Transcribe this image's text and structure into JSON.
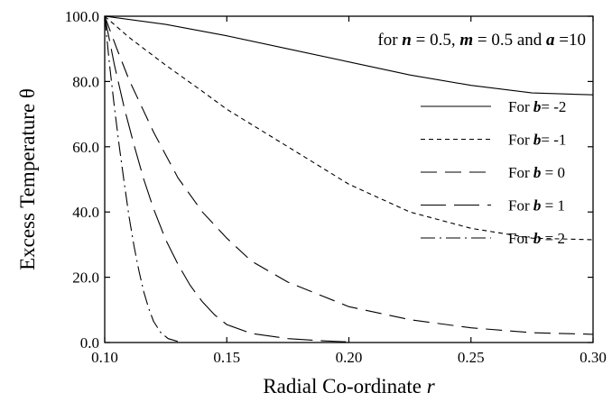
{
  "chart_data": {
    "type": "line",
    "xlabel_text": "Radial Co-ordinate",
    "xlabel_var": "r",
    "ylabel": "Excess Temperature θ",
    "xlim": [
      0.1,
      0.3
    ],
    "ylim": [
      0.0,
      100.0
    ],
    "xticks": [
      0.1,
      0.15,
      0.2,
      0.25,
      0.3
    ],
    "xtick_labels": [
      "0.10",
      "0.15",
      "0.20",
      "0.25",
      "0.30"
    ],
    "yticks": [
      0,
      20,
      40,
      60,
      80,
      100
    ],
    "ytick_labels": [
      "0.0",
      "20.0",
      "40.0",
      "60.0",
      "80.0",
      "100.0"
    ],
    "grid": false,
    "legend_position": "right",
    "annotation": {
      "prefix": "for ",
      "n_sym": "n",
      "n_val": " = 0.5, ",
      "m_sym": "m",
      "m_val": " = 0.5 and ",
      "a_sym": "a",
      "a_val": " =10"
    },
    "series": [
      {
        "name": "For b= -2",
        "legend_prefix": "For ",
        "legend_sym": "b",
        "legend_suffix": "= -2",
        "dash": "",
        "x": [
          0.1,
          0.125,
          0.15,
          0.175,
          0.2,
          0.225,
          0.25,
          0.275,
          0.3
        ],
        "y": [
          100.0,
          97.5,
          94.0,
          90.0,
          86.0,
          82.0,
          78.8,
          76.5,
          75.9
        ]
      },
      {
        "name": "For b= -1",
        "legend_prefix": "For ",
        "legend_sym": "b",
        "legend_suffix": "= -1",
        "dash": "5,4",
        "x": [
          0.1,
          0.11,
          0.125,
          0.14,
          0.15,
          0.175,
          0.2,
          0.225,
          0.25,
          0.275,
          0.3
        ],
        "y": [
          100.0,
          93.5,
          85.0,
          77.0,
          71.5,
          60.0,
          48.5,
          40.0,
          35.0,
          32.0,
          31.5
        ]
      },
      {
        "name": "For b = 0",
        "legend_prefix": "For ",
        "legend_sym": "b",
        "legend_suffix": " = 0",
        "dash": "18,9",
        "x": [
          0.1,
          0.105,
          0.11,
          0.12,
          0.13,
          0.14,
          0.15,
          0.16,
          0.175,
          0.2,
          0.225,
          0.25,
          0.275,
          0.3
        ],
        "y": [
          100.0,
          90.0,
          80.5,
          64.5,
          50.5,
          40.0,
          32.0,
          25.0,
          18.5,
          11.0,
          7.0,
          4.5,
          3.0,
          2.5
        ]
      },
      {
        "name": "For b = 1",
        "legend_prefix": "For ",
        "legend_sym": "b",
        "legend_suffix": " = 1",
        "dash": "28,9",
        "x": [
          0.1,
          0.104,
          0.108,
          0.112,
          0.116,
          0.12,
          0.125,
          0.13,
          0.135,
          0.14,
          0.145,
          0.15,
          0.16,
          0.175,
          0.19,
          0.2
        ],
        "y": [
          100.0,
          85.0,
          72.0,
          60.5,
          50.0,
          41.0,
          31.5,
          24.0,
          17.5,
          12.5,
          8.5,
          5.5,
          2.8,
          1.2,
          0.5,
          0.2
        ]
      },
      {
        "name": "For b = 2",
        "legend_prefix": "For ",
        "legend_sym": "b",
        "legend_suffix": " = 2",
        "dash": "16,5,2,5",
        "x": [
          0.1,
          0.102,
          0.104,
          0.106,
          0.108,
          0.11,
          0.112,
          0.114,
          0.116,
          0.118,
          0.12,
          0.123,
          0.126,
          0.13
        ],
        "y": [
          100.0,
          85.0,
          72.0,
          60.0,
          49.0,
          38.5,
          29.5,
          22.0,
          15.5,
          10.5,
          6.5,
          3.0,
          1.2,
          0.3
        ]
      }
    ]
  }
}
